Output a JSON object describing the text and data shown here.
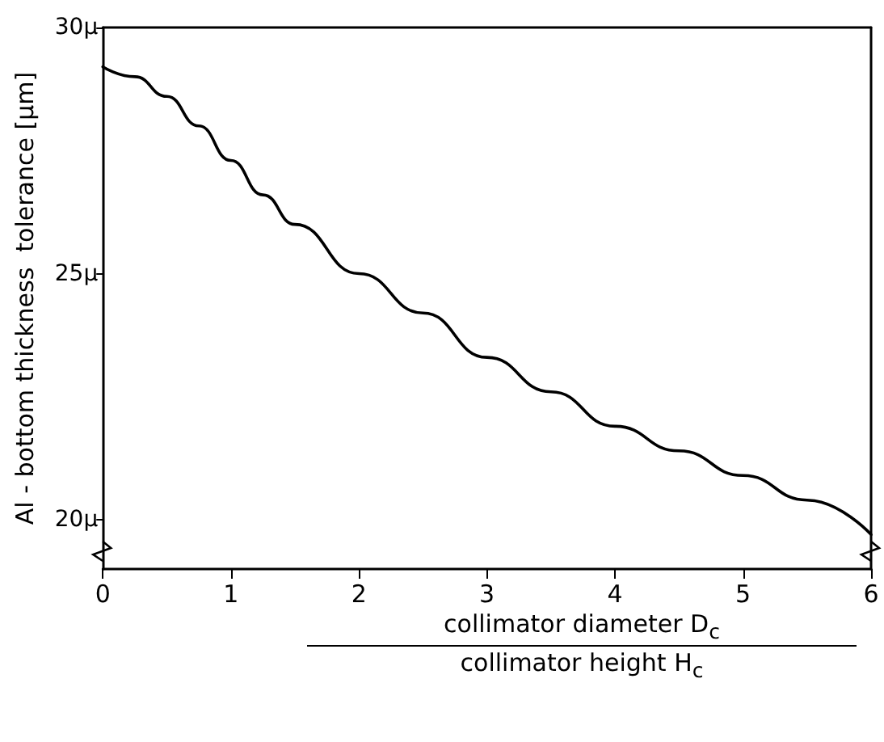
{
  "chart_data": {
    "type": "line",
    "xlabel": "collimator diameter D$_{c}$\ncollimator height H$_{c}$",
    "ylabel": "Al - bottom thickness  tolerance [μm]",
    "x": [
      0,
      0.25,
      0.5,
      0.75,
      1,
      1.25,
      1.5,
      2,
      2.5,
      3,
      3.5,
      4,
      4.5,
      5,
      5.5,
      6
    ],
    "series": [
      {
        "color": "#000000",
        "values": [
          29.2,
          29.0,
          28.6,
          28.0,
          27.3,
          26.6,
          26.0,
          25.0,
          24.2,
          23.3,
          22.6,
          21.9,
          21.4,
          20.9,
          20.4,
          19.7
        ]
      }
    ],
    "xlim": [
      0,
      6
    ],
    "xticks": [
      0,
      1,
      2,
      3,
      4,
      5,
      6
    ],
    "ylim": [
      19,
      30
    ],
    "yticks": [
      {
        "value": 20,
        "label": "20μ"
      },
      {
        "value": 25,
        "label": "25μ"
      },
      {
        "value": 30,
        "label": "30μ"
      }
    ],
    "grid": false,
    "marker": "none",
    "line_style": "solid"
  }
}
